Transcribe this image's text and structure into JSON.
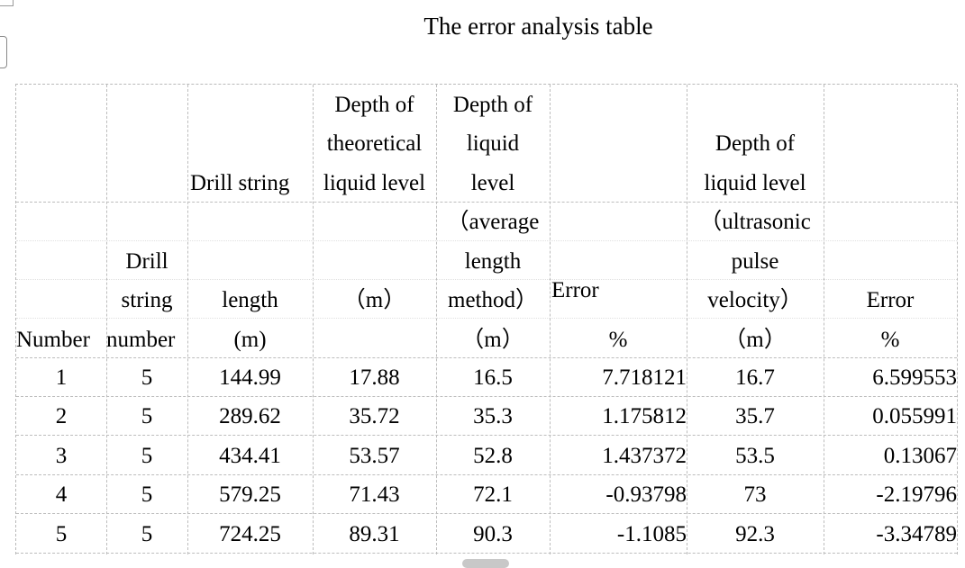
{
  "title": "The error analysis table",
  "table": {
    "headers": {
      "number": "Number",
      "drill_string_number": [
        "Drill",
        "string",
        "number"
      ],
      "drill_string_length": [
        "Drill string",
        "length",
        "(m)"
      ],
      "theoretical_depth": [
        "Depth of",
        "theoretical",
        "liquid level",
        "（m）"
      ],
      "average_length_depth": [
        "Depth of",
        "liquid",
        "level",
        "（average",
        "length",
        "method）",
        "（m）"
      ],
      "error_1": [
        "Error",
        "%"
      ],
      "ultrasonic_depth": [
        "Depth of",
        "liquid level",
        "（ultrasonic",
        "pulse",
        "velocity）",
        "（m）"
      ],
      "error_2": [
        "Error",
        "%"
      ]
    },
    "rows": [
      [
        "1",
        "5",
        "144.99",
        "17.88",
        "16.5",
        "7.718121",
        "16.7",
        "6.599553"
      ],
      [
        "2",
        "5",
        "289.62",
        "35.72",
        "35.3",
        "1.175812",
        "35.7",
        "0.055991"
      ],
      [
        "3",
        "5",
        "434.41",
        "53.57",
        "52.8",
        "1.437372",
        "53.5",
        "0.13067"
      ],
      [
        "4",
        "5",
        "579.25",
        "71.43",
        "72.1",
        "-0.93798",
        "73",
        "-2.19796"
      ],
      [
        "5",
        "5",
        "724.25",
        "89.31",
        "90.3",
        "-1.1085",
        "92.3",
        "-3.34789"
      ]
    ]
  }
}
